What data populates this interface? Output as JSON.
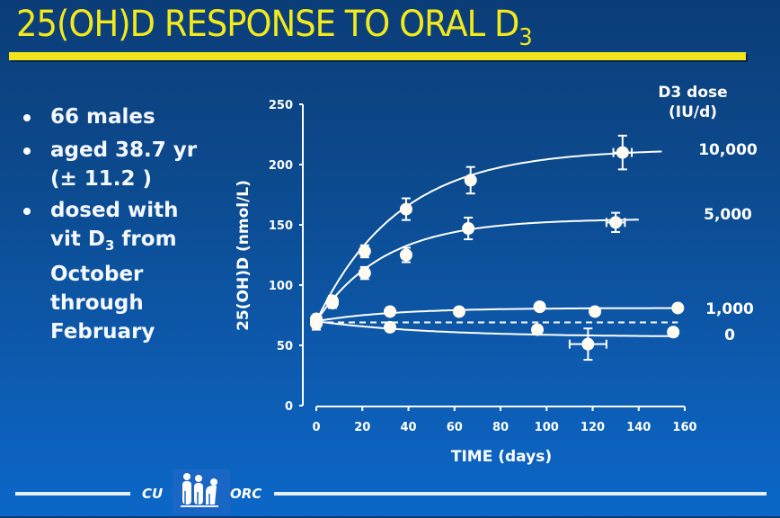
{
  "slide": {
    "title_main": "25(OH)D RESPONSE TO ORAL D",
    "title_sub": "3",
    "bullets": [
      {
        "lines": [
          "66 males"
        ]
      },
      {
        "lines": [
          "aged 38.7 yr",
          "(± 11.2 )"
        ]
      },
      {
        "lines_html": [
          [
            "dosed with"
          ],
          [
            "vit D",
            "3",
            " from"
          ],
          [
            "October"
          ],
          [
            "through"
          ],
          [
            "February"
          ]
        ]
      }
    ],
    "bullet1": "66 males",
    "bullet2_line1": "aged 38.7 yr",
    "bullet2_line2": "(± 11.2 )",
    "bullet3_line1": "dosed with",
    "bullet3_line2_pre": "vit D",
    "bullet3_line2_sub": "3",
    "bullet3_line2_post": " from",
    "bullet3_line3": "October",
    "bullet3_line4": "through",
    "bullet3_line5": "February",
    "footer_left": "CU",
    "footer_right": "ORC",
    "logo_icon": "people-group-icon",
    "colors": {
      "title": "#f3ea1a",
      "background_top": "#0b3d78",
      "background_bottom": "#0b67c8",
      "marks": "#ffffff"
    }
  },
  "chart_data": {
    "type": "line",
    "title": "",
    "xlabel": "TIME (days)",
    "ylabel": "25(OH)D (nmol/L)",
    "xlim": [
      0,
      160
    ],
    "ylim": [
      0,
      250
    ],
    "xticks": [
      0,
      20,
      40,
      60,
      80,
      100,
      120,
      140,
      160
    ],
    "yticks": [
      0,
      50,
      100,
      150,
      200,
      250
    ],
    "grid": false,
    "legend_title_line1": "D3 dose",
    "legend_title_line2": "(IU/d)",
    "legend_placement": "right",
    "baseline_dashed": 69,
    "series": [
      {
        "name": "10,000",
        "x": [
          0,
          7,
          21,
          39,
          67,
          133
        ],
        "y": [
          70,
          87,
          128,
          163,
          187,
          210
        ],
        "yerr": [
          4,
          4,
          5,
          9,
          11,
          14
        ],
        "xerr": [
          0,
          0,
          0,
          0,
          0,
          4
        ],
        "fit": {
          "plateau": 213,
          "start": 70,
          "k": 0.028,
          "xmax": 150
        }
      },
      {
        "name": "5,000",
        "x": [
          0,
          7,
          21,
          39,
          66,
          130
        ],
        "y": [
          70,
          85,
          110,
          125,
          147,
          152
        ],
        "yerr": [
          4,
          4,
          5,
          6,
          9,
          8
        ],
        "xerr": [
          0,
          0,
          0,
          0,
          0,
          4
        ],
        "fit": {
          "plateau": 155,
          "start": 70,
          "k": 0.034,
          "xmax": 140
        }
      },
      {
        "name": "1,000",
        "x": [
          0,
          32,
          62,
          97,
          121,
          157
        ],
        "y": [
          72,
          78,
          78,
          82,
          78,
          81
        ],
        "yerr": [
          0,
          0,
          0,
          0,
          0,
          0
        ],
        "xerr": [
          0,
          0,
          0,
          0,
          0,
          0
        ],
        "fit": {
          "plateau": 81,
          "start": 70,
          "k": 0.03,
          "xmax": 157
        }
      },
      {
        "name": "0",
        "x": [
          0,
          32,
          96,
          118,
          155
        ],
        "y": [
          68,
          65,
          63,
          51,
          61
        ],
        "yerr": [
          5,
          3,
          3,
          13,
          2
        ],
        "xerr": [
          0,
          0,
          0,
          8,
          0
        ],
        "fit": {
          "plateau": 57,
          "start": 70,
          "k": 0.02,
          "xmax": 157
        }
      }
    ]
  }
}
